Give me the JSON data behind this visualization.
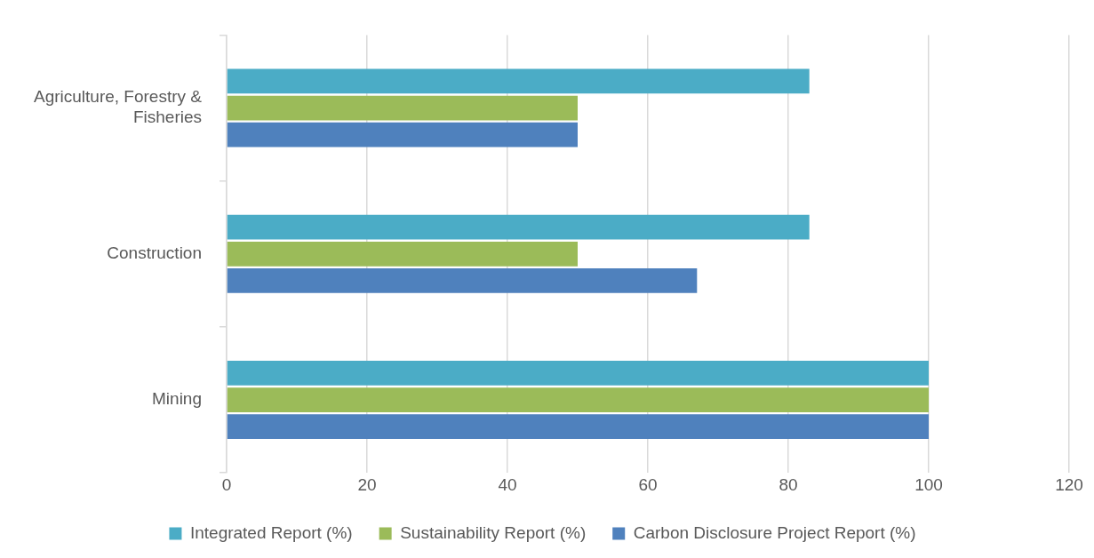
{
  "chart_data": {
    "type": "bar",
    "orientation": "horizontal",
    "categories": [
      "Agriculture, Forestry & Fisheries",
      "Construction",
      "Mining"
    ],
    "series": [
      {
        "name": "Integrated Report (%)",
        "color": "#4bacc6",
        "values": [
          83,
          83,
          100
        ]
      },
      {
        "name": "Sustainability Report (%)",
        "color": "#9bbb59",
        "values": [
          50,
          50,
          100
        ]
      },
      {
        "name": "Carbon Disclosure Project Report (%)",
        "color": "#4f81bd",
        "values": [
          50,
          67,
          100
        ]
      }
    ],
    "xlim": [
      0,
      120
    ],
    "xticks": [
      0,
      20,
      40,
      60,
      80,
      100,
      120
    ],
    "grid": "x",
    "legend": "bottom"
  }
}
